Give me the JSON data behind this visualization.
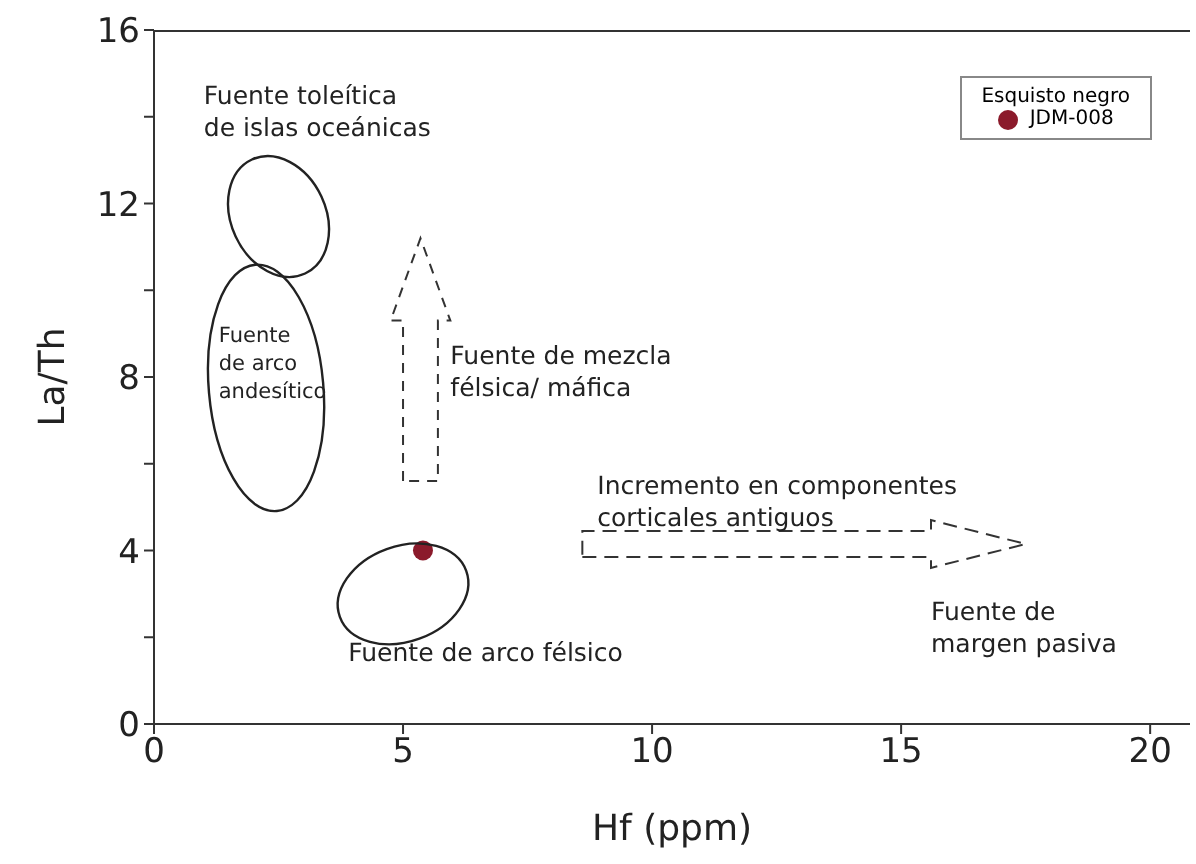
{
  "chart_data": {
    "type": "scatter",
    "xlabel": "Hf (ppm)",
    "ylabel": "La/Th",
    "legend_title": "Esquisto negro",
    "legend": "top right",
    "marker": "circle",
    "xlim": [
      0,
      20.8
    ],
    "ylim": [
      0,
      16
    ],
    "xticks": [
      0,
      5,
      10,
      15,
      20
    ],
    "yticks": [
      0,
      {
        "value": 2,
        "label": null
      },
      4,
      {
        "value": 6,
        "label": null
      },
      8,
      {
        "value": 10,
        "label": null
      },
      12,
      {
        "value": 14,
        "label": null
      },
      16
    ],
    "series": [
      {
        "name": "JDM-008",
        "color": "#8b1a2b",
        "x": [
          5.4
        ],
        "values": [
          4.0
        ]
      }
    ],
    "annotations": [
      "Fuente toleítica\nde islas oceánicas",
      "Fuente\nde arco\nandesítico",
      "Fuente de mezcla\nfélsica/ máfica",
      "Incremento en componentes\ncorticales antiguos",
      "Fuente de\nmargen pasiva",
      "Fuente de arco félsico"
    ]
  }
}
